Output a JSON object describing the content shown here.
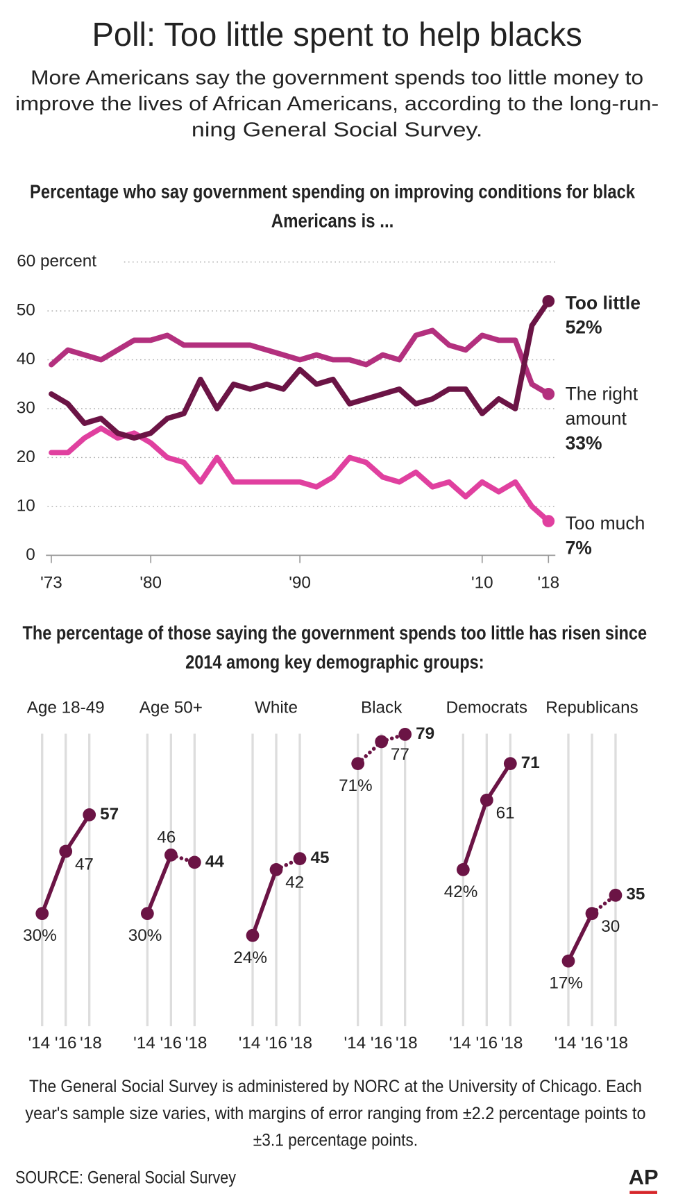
{
  "header": {
    "title": "Poll: Too little spent to help blacks",
    "subtitle_lines": [
      "More Americans say the government spends too little money to",
      "improve the lives of African Americans, according to the long-run-",
      "ning General Social Survey."
    ]
  },
  "chart_data": [
    {
      "type": "line",
      "title_lines": [
        "Percentage who say government spending on improving conditions for black",
        "Americans is ..."
      ],
      "categories": [
        "'73",
        null,
        null,
        null,
        null,
        null,
        "'80",
        null,
        null,
        null,
        null,
        null,
        null,
        null,
        null,
        "'90",
        null,
        null,
        null,
        null,
        null,
        null,
        null,
        null,
        null,
        null,
        "'10",
        null,
        null,
        null,
        "'18"
      ],
      "ylim": [
        0,
        60
      ],
      "yticks": [
        0,
        10,
        20,
        30,
        40,
        50,
        {
          "value": 60,
          "label": "60 percent"
        }
      ],
      "grid": true,
      "series": [
        {
          "name": "Too much",
          "color": "#e0409f",
          "value_label": "7%",
          "values": [
            21,
            21,
            24,
            26,
            24,
            25,
            23,
            20,
            19,
            15,
            20,
            15,
            15,
            15,
            15,
            15,
            14,
            16,
            20,
            19,
            16,
            15,
            17,
            14,
            15,
            12,
            15,
            13,
            15,
            10,
            7
          ]
        },
        {
          "name": "The right amount",
          "color": "#b3307e",
          "value_label": "33%",
          "values": [
            39,
            42,
            41,
            40,
            42,
            44,
            44,
            45,
            43,
            43,
            43,
            43,
            43,
            42,
            41,
            40,
            41,
            40,
            40,
            39,
            41,
            40,
            45,
            46,
            43,
            42,
            45,
            44,
            44,
            35,
            33
          ]
        },
        {
          "name": "Too little",
          "color": "#6b1445",
          "value_label": "52%",
          "values": [
            33,
            31,
            27,
            28,
            25,
            24,
            25,
            28,
            29,
            36,
            30,
            35,
            34,
            35,
            34,
            38,
            35,
            36,
            31,
            32,
            33,
            34,
            31,
            32,
            34,
            34,
            29,
            32,
            30,
            47,
            52
          ]
        }
      ]
    },
    {
      "type": "small_multiples",
      "title_lines": [
        "The percentage of those saying the government spends too little has risen since",
        "2014 among key demographic groups:"
      ],
      "categories": [
        "'14",
        "'16",
        "'18"
      ],
      "ylim": [
        0,
        80
      ],
      "color": "#6b1445",
      "groups": [
        {
          "name": "Age 18-49",
          "values": [
            30,
            47,
            57
          ],
          "value_labels": [
            "30%",
            "47",
            "57"
          ],
          "line_styles": [
            "solid",
            "solid"
          ]
        },
        {
          "name": "Age 50+",
          "values": [
            30,
            46,
            44
          ],
          "value_labels": [
            "30%",
            "46",
            "44"
          ],
          "line_styles": [
            "solid",
            "dotted"
          ]
        },
        {
          "name": "White",
          "values": [
            24,
            42,
            45
          ],
          "value_labels": [
            "24%",
            "42",
            "45"
          ],
          "line_styles": [
            "solid",
            "dotted"
          ]
        },
        {
          "name": "Black",
          "values": [
            71,
            77,
            79
          ],
          "value_labels": [
            "71%",
            "77",
            "79"
          ],
          "line_styles": [
            "dotted",
            "dotted"
          ]
        },
        {
          "name": "Democrats",
          "values": [
            42,
            61,
            71
          ],
          "value_labels": [
            "42%",
            "61",
            "71"
          ],
          "line_styles": [
            "solid",
            "solid"
          ]
        },
        {
          "name": "Republicans",
          "values": [
            17,
            30,
            35
          ],
          "value_labels": [
            "17%",
            "30",
            "35"
          ],
          "line_styles": [
            "solid",
            "dotted"
          ]
        }
      ]
    }
  ],
  "footer": {
    "note_lines": [
      "The General Social Survey is administered by NORC at the University of Chicago. Each",
      "year's sample size varies, with margins of error ranging from ±2.2 percentage points to",
      "±3.1 percentage points."
    ],
    "source": "SOURCE: General Social Survey",
    "logo": "AP"
  }
}
